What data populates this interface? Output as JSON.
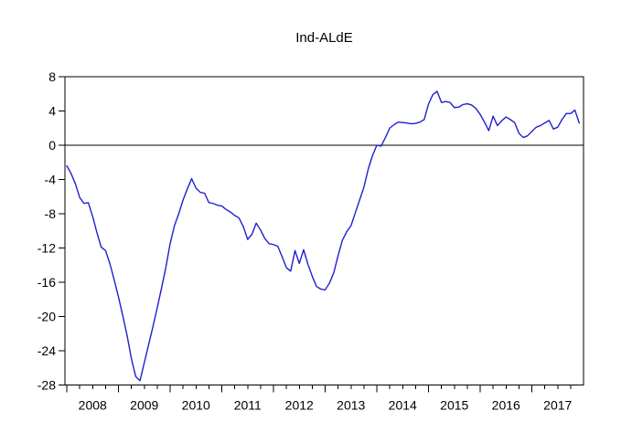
{
  "window": {
    "background": "#ffffff",
    "text_color": "#000000",
    "axis_color": "#000000"
  },
  "chart_data": {
    "type": "line",
    "title": "Ind-ALdE",
    "frequency": "monthly",
    "x_start_label": "2008M01",
    "x_end_label": "2017M12",
    "x_tick_years": [
      2008,
      2009,
      2010,
      2011,
      2012,
      2013,
      2014,
      2015,
      2016,
      2017
    ],
    "ylim": [
      -28,
      8
    ],
    "yticks": [
      8,
      4,
      0,
      -4,
      -8,
      -12,
      -16,
      -20,
      -24,
      -28
    ],
    "zero_line": true,
    "grid": "off",
    "legend": "none",
    "series": [
      {
        "name": "Ind-ALdE",
        "color": "#2020cc",
        "values": [
          -2.4,
          -3.3,
          -4.5,
          -6.1,
          -6.8,
          -6.7,
          -8.3,
          -10.2,
          -11.9,
          -12.3,
          -13.8,
          -15.7,
          -17.7,
          -19.9,
          -22.2,
          -24.9,
          -27.0,
          -27.5,
          -25.4,
          -23.3,
          -21.2,
          -19.0,
          -16.7,
          -14.3,
          -11.5,
          -9.4,
          -8.0,
          -6.4,
          -5.1,
          -3.9,
          -5.0,
          -5.5,
          -5.6,
          -6.7,
          -6.8,
          -7.0,
          -7.1,
          -7.5,
          -7.8,
          -8.2,
          -8.5,
          -9.5,
          -11.0,
          -10.4,
          -9.1,
          -9.9,
          -10.9,
          -11.5,
          -11.6,
          -11.8,
          -13.0,
          -14.3,
          -14.7,
          -12.3,
          -13.8,
          -12.2,
          -13.9,
          -15.3,
          -16.5,
          -16.8,
          -16.9,
          -16.1,
          -14.9,
          -12.9,
          -11.1,
          -10.1,
          -9.4,
          -7.9,
          -6.4,
          -4.9,
          -2.8,
          -1.2,
          0.0,
          -0.1,
          0.9,
          2.0,
          2.4,
          2.7,
          2.65,
          2.6,
          2.5,
          2.55,
          2.7,
          3.0,
          4.8,
          5.9,
          6.3,
          5.0,
          5.1,
          5.0,
          4.4,
          4.45,
          4.75,
          4.85,
          4.7,
          4.3,
          3.6,
          2.7,
          1.7,
          3.4,
          2.3,
          2.85,
          3.3,
          3.0,
          2.65,
          1.4,
          0.9,
          1.1,
          1.6,
          2.1,
          2.3,
          2.6,
          2.9,
          1.9,
          2.1,
          3.0,
          3.7,
          3.7,
          4.1,
          2.6
        ]
      }
    ]
  }
}
